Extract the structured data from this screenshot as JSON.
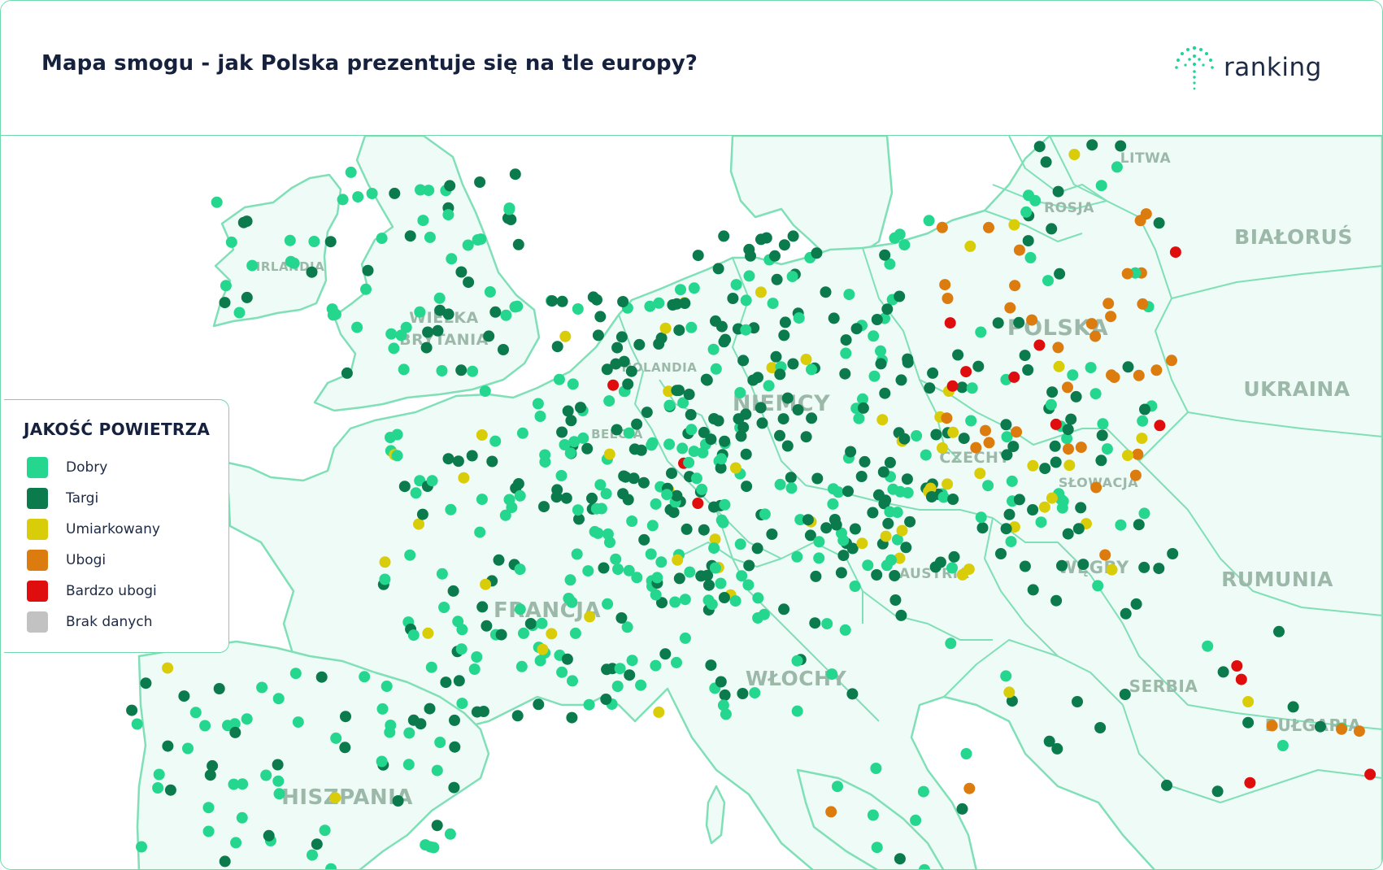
{
  "header": {
    "title": "Mapa smogu - jak Polska prezentuje się na tle europy?",
    "brand": "ranking"
  },
  "colors": {
    "brand_green": "#1fd495",
    "land": "#effbf6",
    "border": "#7fe0b7",
    "good": "#25d68f",
    "fair": "#0b7a4c",
    "moderate": "#d9cc08",
    "poor": "#dd7c0e",
    "very_poor": "#df0d0d",
    "no_data": "#c2c2c2"
  },
  "legend": {
    "title": "JAKOŚĆ POWIETRZA",
    "items": [
      {
        "key": "good",
        "label": "Dobry",
        "color": "#25d68f"
      },
      {
        "key": "fair",
        "label": "Targi",
        "color": "#0b7a4c"
      },
      {
        "key": "moderate",
        "label": "Umiarkowany",
        "color": "#d9cc08"
      },
      {
        "key": "poor",
        "label": "Ubogi",
        "color": "#dd7c0e"
      },
      {
        "key": "very_poor",
        "label": "Bardzo ubogi",
        "color": "#df0d0d"
      },
      {
        "key": "no_data",
        "label": "Brak danych",
        "color": "#c2c2c2"
      }
    ]
  },
  "countries": [
    {
      "key": "irlandia",
      "label": "IRLANDIA"
    },
    {
      "key": "wielka_brytania",
      "label": "WIELKA BRYTANIA"
    },
    {
      "key": "litwa",
      "label": "LITWA"
    },
    {
      "key": "rosja",
      "label": "ROSJA"
    },
    {
      "key": "bialorus",
      "label": "BIAŁORUŚ"
    },
    {
      "key": "polska",
      "label": "POLSKA"
    },
    {
      "key": "ukraina",
      "label": "UKRAINA"
    },
    {
      "key": "holandia",
      "label": "HOLANDIA"
    },
    {
      "key": "belgia",
      "label": "BELGIA"
    },
    {
      "key": "niemcy",
      "label": "NIEMCY"
    },
    {
      "key": "czechy",
      "label": "CZECHY"
    },
    {
      "key": "slowacja",
      "label": "SŁOWACJA"
    },
    {
      "key": "austria",
      "label": "AUSTRIA"
    },
    {
      "key": "wegry",
      "label": "WĘGRY"
    },
    {
      "key": "rumunia",
      "label": "RUMUNIA"
    },
    {
      "key": "francja",
      "label": "FRANCJA"
    },
    {
      "key": "wlochy",
      "label": "WŁOCHY"
    },
    {
      "key": "serbia",
      "label": "SERBIA"
    },
    {
      "key": "bulgaria",
      "label": "BUŁGARIA"
    },
    {
      "key": "hiszpania",
      "label": "HISZPANIA"
    }
  ]
}
